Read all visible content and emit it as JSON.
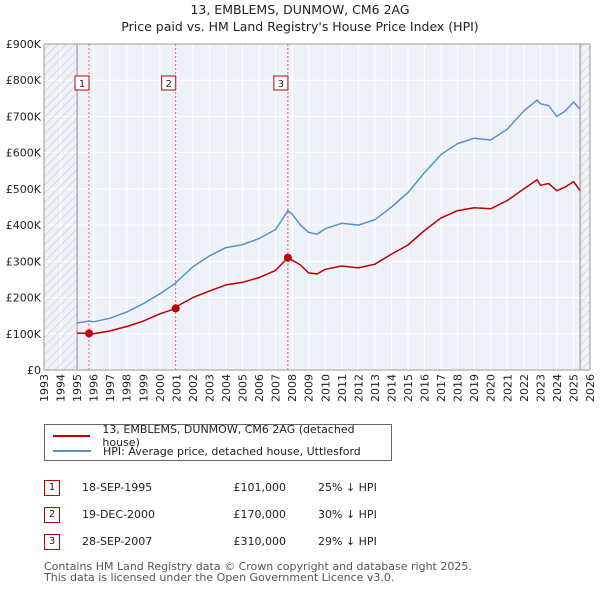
{
  "header": {
    "line1": "13, EMBLEMS, DUNMOW, CM6 2AG",
    "line2": "Price paid vs. HM Land Registry's House Price Index (HPI)"
  },
  "chart_data": {
    "type": "line",
    "title": "13, EMBLEMS, DUNMOW, CM6 2AG",
    "subtitle": "Price paid vs. HM Land Registry's House Price Index (HPI)",
    "xlabel": "",
    "ylabel": "",
    "xlim": [
      1993,
      2026
    ],
    "ylim": [
      0,
      900000
    ],
    "x_ticks": [
      1993,
      1994,
      1995,
      1996,
      1997,
      1998,
      1999,
      2000,
      2001,
      2002,
      2003,
      2004,
      2005,
      2006,
      2007,
      2008,
      2009,
      2010,
      2011,
      2012,
      2013,
      2014,
      2015,
      2016,
      2017,
      2018,
      2019,
      2020,
      2021,
      2022,
      2023,
      2024,
      2025,
      2026
    ],
    "y_ticks": [
      {
        "value": 0,
        "label": "£0"
      },
      {
        "value": 100000,
        "label": "£100K"
      },
      {
        "value": 200000,
        "label": "£200K"
      },
      {
        "value": 300000,
        "label": "£300K"
      },
      {
        "value": 400000,
        "label": "£400K"
      },
      {
        "value": 500000,
        "label": "£500K"
      },
      {
        "value": 600000,
        "label": "£600K"
      },
      {
        "value": 700000,
        "label": "£700K"
      },
      {
        "value": 800000,
        "label": "£800K"
      },
      {
        "value": 900000,
        "label": "£900K"
      }
    ],
    "grid": true,
    "hatched_ranges": [
      [
        1993,
        1995
      ],
      [
        2025.4,
        2026
      ]
    ],
    "series": [
      {
        "name": "13, EMBLEMS, DUNMOW, CM6 2AG (detached house)",
        "color": "#c00000",
        "points": [
          [
            1995,
            102000
          ],
          [
            1995.72,
            101000
          ],
          [
            1996,
            100000
          ],
          [
            1997,
            108000
          ],
          [
            1998,
            120000
          ],
          [
            1999,
            135000
          ],
          [
            2000,
            155000
          ],
          [
            2000.96,
            170000
          ],
          [
            2001,
            175000
          ],
          [
            2002,
            200000
          ],
          [
            2003,
            218000
          ],
          [
            2004,
            235000
          ],
          [
            2005,
            242000
          ],
          [
            2006,
            255000
          ],
          [
            2007,
            275000
          ],
          [
            2007.74,
            310000
          ],
          [
            2008,
            303000
          ],
          [
            2008.5,
            290000
          ],
          [
            2009,
            268000
          ],
          [
            2009.5,
            265000
          ],
          [
            2010,
            278000
          ],
          [
            2011,
            287000
          ],
          [
            2012,
            282000
          ],
          [
            2013,
            292000
          ],
          [
            2014,
            320000
          ],
          [
            2015,
            345000
          ],
          [
            2016,
            385000
          ],
          [
            2017,
            420000
          ],
          [
            2018,
            440000
          ],
          [
            2019,
            448000
          ],
          [
            2020,
            445000
          ],
          [
            2021,
            468000
          ],
          [
            2022,
            500000
          ],
          [
            2022.8,
            525000
          ],
          [
            2023,
            510000
          ],
          [
            2023.5,
            515000
          ],
          [
            2024,
            495000
          ],
          [
            2024.5,
            505000
          ],
          [
            2025,
            520000
          ],
          [
            2025.4,
            495000
          ]
        ]
      },
      {
        "name": "HPI: Average price, detached house, Uttlesford",
        "color": "#5a8fd0",
        "points": [
          [
            1995,
            130000
          ],
          [
            1995.72,
            135000
          ],
          [
            1996,
            133000
          ],
          [
            1997,
            143000
          ],
          [
            1998,
            160000
          ],
          [
            1999,
            183000
          ],
          [
            2000,
            210000
          ],
          [
            2000.96,
            240000
          ],
          [
            2001,
            243000
          ],
          [
            2002,
            285000
          ],
          [
            2003,
            315000
          ],
          [
            2004,
            338000
          ],
          [
            2005,
            346000
          ],
          [
            2006,
            363000
          ],
          [
            2007,
            388000
          ],
          [
            2007.74,
            440000
          ],
          [
            2008,
            430000
          ],
          [
            2008.5,
            400000
          ],
          [
            2009,
            380000
          ],
          [
            2009.5,
            375000
          ],
          [
            2010,
            390000
          ],
          [
            2011,
            405000
          ],
          [
            2012,
            400000
          ],
          [
            2013,
            415000
          ],
          [
            2014,
            450000
          ],
          [
            2015,
            490000
          ],
          [
            2016,
            545000
          ],
          [
            2017,
            595000
          ],
          [
            2018,
            625000
          ],
          [
            2019,
            640000
          ],
          [
            2020,
            635000
          ],
          [
            2021,
            665000
          ],
          [
            2022,
            715000
          ],
          [
            2022.8,
            745000
          ],
          [
            2023,
            735000
          ],
          [
            2023.5,
            730000
          ],
          [
            2024,
            700000
          ],
          [
            2024.5,
            715000
          ],
          [
            2025,
            740000
          ],
          [
            2025.4,
            720000
          ]
        ]
      }
    ],
    "sales": [
      {
        "id": "1",
        "x": 1995.72,
        "price": 101000
      },
      {
        "id": "2",
        "x": 2000.96,
        "price": 170000
      },
      {
        "id": "3",
        "x": 2007.74,
        "price": 310000
      }
    ]
  },
  "legend": {
    "property_label": "13, EMBLEMS, DUNMOW, CM6 2AG (detached house)",
    "property_color": "#c00000",
    "hpi_label": "HPI: Average price, detached house, Uttlesford",
    "hpi_color": "#5a8fd0"
  },
  "transactions": [
    {
      "num": "1",
      "date": "18-SEP-1995",
      "price": "£101,000",
      "delta": "25% ↓ HPI"
    },
    {
      "num": "2",
      "date": "19-DEC-2000",
      "price": "£170,000",
      "delta": "30% ↓ HPI"
    },
    {
      "num": "3",
      "date": "28-SEP-2007",
      "price": "£310,000",
      "delta": "29% ↓ HPI"
    }
  ],
  "footer": {
    "line1": "Contains HM Land Registry data © Crown copyright and database right 2025.",
    "line2": "This data is licensed under the Open Government Licence v3.0."
  }
}
